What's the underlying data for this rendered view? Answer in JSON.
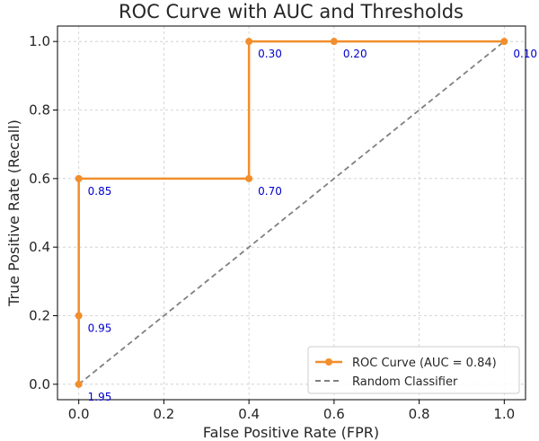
{
  "chart_data": {
    "type": "line",
    "title": "ROC Curve with AUC and Thresholds",
    "xlabel": "False Positive Rate (FPR)",
    "ylabel": "True Positive Rate (Recall)",
    "xlim": [
      -0.05,
      1.05
    ],
    "ylim": [
      -0.045,
      1.045
    ],
    "xticks": [
      0.0,
      0.2,
      0.4,
      0.6,
      0.8,
      1.0
    ],
    "yticks": [
      0.0,
      0.2,
      0.4,
      0.6,
      0.8,
      1.0
    ],
    "xtick_labels": [
      "0.0",
      "0.2",
      "0.4",
      "0.6",
      "0.8",
      "1.0"
    ],
    "ytick_labels": [
      "0.0",
      "0.2",
      "0.4",
      "0.6",
      "0.8",
      "1.0"
    ],
    "grid": true,
    "legend_position": "lower-right",
    "series": [
      {
        "name": "ROC Curve (AUC = 0.84)",
        "style": "solid-with-markers",
        "color": "#f28e2b",
        "x": [
          0.0,
          0.0,
          0.0,
          0.4,
          0.4,
          0.6,
          1.0
        ],
        "y": [
          0.0,
          0.2,
          0.6,
          0.6,
          1.0,
          1.0,
          1.0
        ],
        "thresholds": [
          "1.95",
          "0.95",
          "0.85",
          "0.70",
          "0.30",
          "0.20",
          "0.10"
        ]
      },
      {
        "name": "Random Classifier",
        "style": "dashed",
        "color": "#808080",
        "x": [
          0.0,
          1.0
        ],
        "y": [
          0.0,
          1.0
        ]
      }
    ],
    "threshold_label_color": "#0000cc"
  }
}
